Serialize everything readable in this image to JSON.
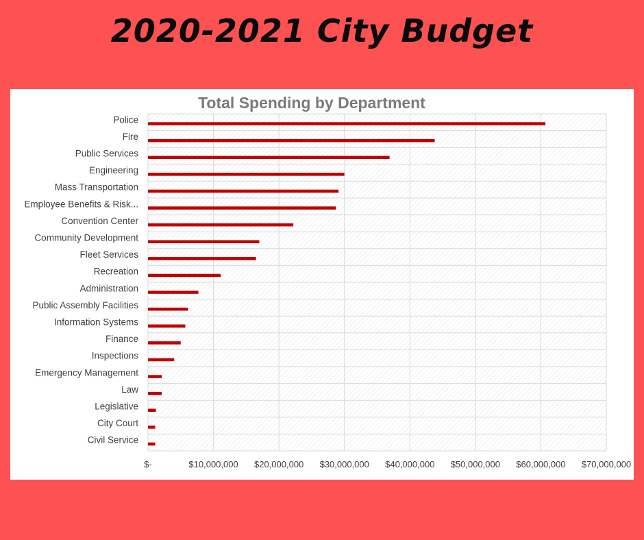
{
  "header": {
    "title": "2020-2021 City Budget"
  },
  "colors": {
    "background": "#fe5252",
    "card": "#ffffff",
    "bar": "#c00000",
    "grid": "#d9d9d9",
    "text": "#404040"
  },
  "chart_data": {
    "type": "bar",
    "orientation": "horizontal",
    "title": "Total Spending by Department",
    "xlabel": "",
    "ylabel": "",
    "xlim": [
      0,
      70000000
    ],
    "x_ticks": [
      0,
      10000000,
      20000000,
      30000000,
      40000000,
      50000000,
      60000000,
      70000000
    ],
    "x_tick_labels": [
      "$-",
      "$10,000,000",
      "$20,000,000",
      "$30,000,000",
      "$40,000,000",
      "$50,000,000",
      "$60,000,000",
      "$70,000,000"
    ],
    "grid": true,
    "categories": [
      "Police",
      "Fire",
      "Public Services",
      "Engineering",
      "Mass Transportation",
      "Employee Benefits & Risk...",
      "Convention Center",
      "Community Development",
      "Fleet Services",
      "Recreation",
      "Administration",
      "Public Assembly Facilities",
      "Information Systems",
      "Finance",
      "Inspections",
      "Emergency Management",
      "Law",
      "Legislative",
      "City Court",
      "Civil Service"
    ],
    "values": [
      60700000,
      43800000,
      36900000,
      30000000,
      29100000,
      28700000,
      22200000,
      17000000,
      16500000,
      11100000,
      7700000,
      6100000,
      5700000,
      5000000,
      4000000,
      2100000,
      2100000,
      1200000,
      1100000,
      1100000
    ]
  }
}
